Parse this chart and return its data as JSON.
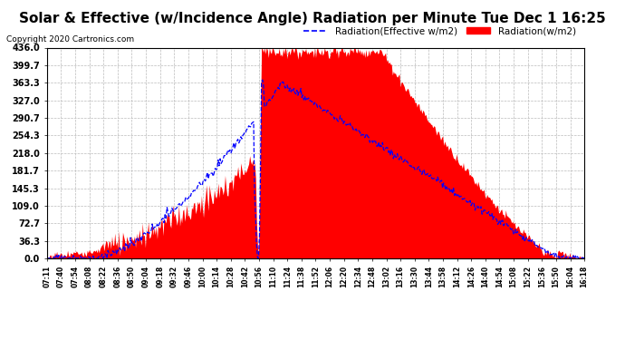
{
  "title": "Solar & Effective (w/Incidence Angle) Radiation per Minute Tue Dec 1 16:25",
  "copyright": "Copyright 2020 Cartronics.com",
  "legend_blue": "Radiation(Effective w/m2)",
  "legend_red": "Radiation(w/m2)",
  "ylabel_values": [
    0.0,
    36.3,
    72.7,
    109.0,
    145.3,
    181.7,
    218.0,
    254.3,
    290.7,
    327.0,
    363.3,
    399.7,
    436.0
  ],
  "ymax": 436.0,
  "ymin": 0.0,
  "background_color": "#ffffff",
  "grid_color": "#bbbbbb",
  "title_color": "#000000",
  "title_fontsize": 11,
  "x_tick_labels": [
    "07:11",
    "07:40",
    "07:54",
    "08:08",
    "08:22",
    "08:36",
    "08:50",
    "09:04",
    "09:18",
    "09:32",
    "09:46",
    "10:00",
    "10:14",
    "10:28",
    "10:42",
    "10:56",
    "11:10",
    "11:24",
    "11:38",
    "11:52",
    "12:06",
    "12:20",
    "12:34",
    "12:48",
    "13:02",
    "13:16",
    "13:30",
    "13:44",
    "13:58",
    "14:12",
    "14:26",
    "14:40",
    "14:54",
    "15:08",
    "15:22",
    "15:36",
    "15:50",
    "16:04",
    "16:18"
  ],
  "n_points": 547
}
